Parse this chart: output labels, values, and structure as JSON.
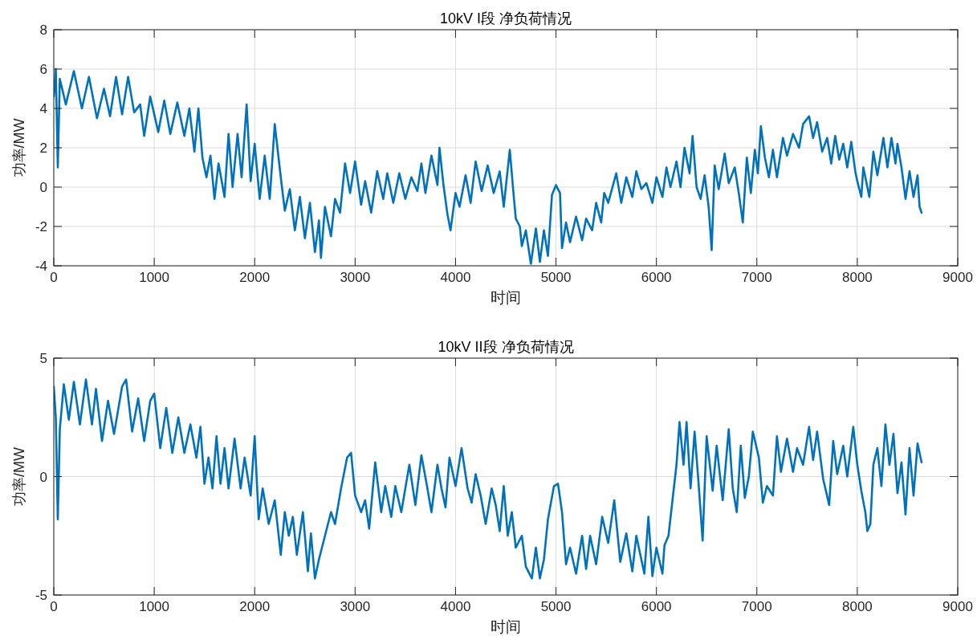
{
  "chart_data": [
    {
      "type": "line",
      "title": "10kV I段 净负荷情况",
      "xlabel": "时间",
      "ylabel": "功率/MW",
      "xlim": [
        0,
        9000
      ],
      "ylim": [
        -4,
        8
      ],
      "xticks": [
        0,
        1000,
        2000,
        3000,
        4000,
        5000,
        6000,
        7000,
        8000,
        9000
      ],
      "yticks": [
        -4,
        -2,
        0,
        2,
        4,
        6,
        8
      ],
      "grid": true,
      "x": [
        0,
        20,
        40,
        60,
        120,
        200,
        280,
        350,
        430,
        500,
        560,
        620,
        680,
        740,
        800,
        860,
        900,
        960,
        1040,
        1100,
        1160,
        1230,
        1300,
        1350,
        1400,
        1440,
        1480,
        1520,
        1560,
        1600,
        1640,
        1700,
        1740,
        1780,
        1830,
        1870,
        1920,
        1960,
        2000,
        2050,
        2100,
        2150,
        2200,
        2260,
        2300,
        2350,
        2400,
        2450,
        2500,
        2550,
        2600,
        2640,
        2660,
        2700,
        2760,
        2800,
        2850,
        2900,
        2950,
        3000,
        3060,
        3100,
        3160,
        3220,
        3280,
        3320,
        3380,
        3440,
        3500,
        3560,
        3620,
        3660,
        3700,
        3760,
        3820,
        3840,
        3880,
        3920,
        3950,
        4000,
        4040,
        4100,
        4150,
        4200,
        4260,
        4320,
        4380,
        4440,
        4480,
        4540,
        4580,
        4600,
        4640,
        4660,
        4700,
        4750,
        4800,
        4840,
        4880,
        4920,
        4960,
        5000,
        5040,
        5060,
        5100,
        5140,
        5200,
        5260,
        5300,
        5360,
        5400,
        5450,
        5480,
        5520,
        5600,
        5650,
        5700,
        5760,
        5800,
        5850,
        5900,
        5960,
        6000,
        6060,
        6100,
        6140,
        6200,
        6240,
        6280,
        6330,
        6360,
        6400,
        6440,
        6480,
        6520,
        6550,
        6580,
        6620,
        6680,
        6720,
        6780,
        6820,
        6860,
        6900,
        6940,
        6980,
        7010,
        7040,
        7080,
        7120,
        7160,
        7200,
        7260,
        7300,
        7360,
        7420,
        7460,
        7520,
        7560,
        7600,
        7650,
        7700,
        7740,
        7780,
        7820,
        7860,
        7900,
        7940,
        7980,
        8000,
        8040,
        8060,
        8120,
        8160,
        8200,
        8260,
        8300,
        8340,
        8380,
        8400,
        8440,
        8480,
        8520,
        8560,
        8600,
        8620,
        8640
      ],
      "series": [
        {
          "color": "#0072bd",
          "values": [
            4.6,
            6.0,
            1.0,
            5.5,
            4.2,
            5.9,
            4.0,
            5.6,
            3.5,
            5.0,
            3.6,
            5.6,
            3.7,
            5.6,
            3.8,
            4.2,
            2.6,
            4.6,
            2.8,
            4.4,
            2.7,
            4.3,
            2.6,
            4.0,
            1.8,
            4.0,
            1.5,
            0.5,
            1.6,
            -0.6,
            1.2,
            -0.5,
            2.7,
            0.0,
            2.7,
            0.5,
            4.2,
            0.3,
            2.2,
            -0.6,
            1.6,
            -0.6,
            3.2,
            0.5,
            -1.2,
            -0.1,
            -2.2,
            -0.5,
            -2.6,
            -0.8,
            -3.3,
            -1.7,
            -3.6,
            -1.0,
            -2.5,
            -0.6,
            -1.3,
            1.2,
            -0.3,
            1.3,
            -0.9,
            0.3,
            -1.3,
            0.8,
            -0.6,
            0.7,
            -0.8,
            0.7,
            -0.6,
            0.5,
            -0.2,
            1.2,
            -0.3,
            1.6,
            0.1,
            2.0,
            0.1,
            -1.4,
            -2.2,
            -0.3,
            -1.0,
            0.6,
            -0.8,
            1.3,
            -0.2,
            1.1,
            -0.3,
            0.8,
            -1.0,
            1.9,
            -0.5,
            -1.6,
            -2.0,
            -3.0,
            -2.2,
            -3.9,
            -2.1,
            -3.8,
            -2.2,
            -3.5,
            -0.4,
            0.1,
            -0.3,
            -3.1,
            -1.8,
            -2.8,
            -1.5,
            -2.7,
            -1.6,
            -2.2,
            -0.8,
            -1.8,
            -0.3,
            -0.8,
            0.7,
            -0.8,
            0.5,
            -0.5,
            0.8,
            -0.1,
            0.2,
            -0.8,
            0.5,
            -0.5,
            1.0,
            0.0,
            1.3,
            0.0,
            2.0,
            0.7,
            2.6,
            0.0,
            -0.6,
            0.6,
            -1.0,
            -3.2,
            1.1,
            -0.1,
            1.7,
            0.2,
            1.0,
            -0.3,
            -1.8,
            1.5,
            -0.3,
            1.9,
            0.7,
            3.1,
            1.5,
            0.5,
            1.9,
            0.5,
            2.5,
            1.6,
            2.7,
            2.0,
            3.2,
            3.6,
            2.5,
            3.3,
            1.8,
            2.5,
            1.2,
            2.6,
            1.4,
            2.2,
            1.0,
            2.3,
            0.8,
            0.3,
            -0.5,
            1.0,
            -0.5,
            1.8,
            0.6,
            2.5,
            1.0,
            2.5,
            1.2,
            2.2,
            1.0,
            -0.6,
            0.8,
            -0.5,
            0.6,
            -1.0,
            -1.3
          ]
        }
      ]
    },
    {
      "type": "line",
      "title": "10kV II段 净负荷情况",
      "xlabel": "时间",
      "ylabel": "功率/MW",
      "xlim": [
        0,
        9000
      ],
      "ylim": [
        -5,
        5
      ],
      "xticks": [
        0,
        1000,
        2000,
        3000,
        4000,
        5000,
        6000,
        7000,
        8000,
        9000
      ],
      "yticks": [
        -5,
        0,
        5
      ],
      "grid": true,
      "x": [
        0,
        20,
        40,
        60,
        100,
        150,
        200,
        260,
        320,
        380,
        420,
        480,
        540,
        600,
        680,
        720,
        780,
        840,
        900,
        960,
        1000,
        1060,
        1120,
        1180,
        1240,
        1300,
        1360,
        1420,
        1460,
        1500,
        1540,
        1580,
        1620,
        1660,
        1700,
        1740,
        1800,
        1860,
        1900,
        1960,
        2000,
        2040,
        2080,
        2140,
        2200,
        2260,
        2300,
        2340,
        2380,
        2420,
        2480,
        2530,
        2560,
        2600,
        2640,
        2700,
        2760,
        2800,
        2860,
        2920,
        2960,
        3000,
        3060,
        3100,
        3140,
        3200,
        3260,
        3300,
        3360,
        3400,
        3460,
        3540,
        3600,
        3660,
        3720,
        3760,
        3820,
        3860,
        3900,
        3940,
        4000,
        4060,
        4120,
        4160,
        4200,
        4250,
        4300,
        4360,
        4400,
        4440,
        4480,
        4520,
        4560,
        4600,
        4660,
        4700,
        4760,
        4800,
        4840,
        4880,
        4920,
        4980,
        5020,
        5060,
        5100,
        5140,
        5200,
        5260,
        5300,
        5340,
        5400,
        5460,
        5520,
        5580,
        5640,
        5700,
        5760,
        5800,
        5880,
        5920,
        5960,
        6000,
        6060,
        6080,
        6120,
        6160,
        6200,
        6230,
        6270,
        6300,
        6340,
        6380,
        6420,
        6460,
        6500,
        6560,
        6600,
        6660,
        6720,
        6760,
        6800,
        6840,
        6880,
        6920,
        6960,
        7020,
        7060,
        7100,
        7160,
        7200,
        7240,
        7300,
        7360,
        7400,
        7460,
        7520,
        7560,
        7600,
        7660,
        7720,
        7760,
        7800,
        7860,
        7900,
        7960,
        8000,
        8040,
        8080,
        8100,
        8130,
        8160,
        8200,
        8240,
        8280,
        8320,
        8360,
        8400,
        8440,
        8480,
        8520,
        8560,
        8600,
        8640
      ],
      "series": [
        {
          "color": "#0072bd",
          "values": [
            3.8,
            2.5,
            -1.8,
            2.0,
            3.9,
            2.4,
            4.0,
            2.2,
            4.1,
            2.2,
            3.7,
            1.5,
            3.2,
            1.8,
            3.8,
            4.1,
            1.9,
            3.3,
            1.5,
            3.2,
            3.5,
            1.2,
            2.9,
            1.0,
            2.5,
            1.0,
            2.2,
            0.8,
            2.1,
            -0.3,
            0.8,
            -0.5,
            1.7,
            -0.3,
            1.2,
            -0.5,
            1.6,
            -0.5,
            0.8,
            -0.8,
            1.7,
            -1.8,
            -0.5,
            -2.0,
            -1.0,
            -3.3,
            -1.5,
            -2.5,
            -1.7,
            -3.3,
            -1.5,
            -4.0,
            -2.4,
            -4.3,
            -3.5,
            -2.5,
            -1.5,
            -2.0,
            -0.5,
            0.8,
            1.0,
            -0.8,
            -1.5,
            -1.0,
            -2.2,
            0.6,
            -1.5,
            -0.4,
            -1.7,
            -0.4,
            -1.5,
            0.5,
            -1.2,
            0.9,
            -0.5,
            -1.5,
            0.5,
            -0.5,
            -1.3,
            0.8,
            -0.4,
            1.2,
            -0.5,
            -1.1,
            0.1,
            -0.8,
            -2.0,
            -0.5,
            -1.2,
            -2.3,
            -0.4,
            -2.5,
            -1.5,
            -3.0,
            -2.5,
            -3.8,
            -4.3,
            -3.0,
            -4.3,
            -3.5,
            -1.8,
            -0.4,
            -0.3,
            -1.5,
            -3.7,
            -3.0,
            -4.1,
            -2.5,
            -3.9,
            -2.5,
            -3.7,
            -1.7,
            -2.8,
            -1.0,
            -3.6,
            -2.4,
            -4.0,
            -2.5,
            -4.1,
            -1.7,
            -4.2,
            -3.0,
            -4.1,
            -2.9,
            -2.5,
            -1.0,
            0.5,
            2.3,
            0.5,
            2.3,
            -0.5,
            1.9,
            -0.3,
            -2.7,
            1.7,
            -0.6,
            1.3,
            -1.0,
            2.0,
            -0.5,
            -1.5,
            1.3,
            -0.9,
            0.0,
            1.9,
            0.8,
            -1.1,
            -0.4,
            -0.8,
            1.7,
            0.2,
            1.6,
            0.2,
            1.2,
            0.5,
            2.1,
            0.7,
            1.9,
            -0.1,
            -1.2,
            1.5,
            0.1,
            1.3,
            0.0,
            2.1,
            0.5,
            -0.6,
            -1.5,
            -2.3,
            -2.0,
            0.5,
            1.2,
            -0.4,
            2.2,
            0.5,
            1.8,
            -0.7,
            0.6,
            -1.6,
            1.2,
            -0.8,
            1.4,
            0.6
          ]
        }
      ]
    }
  ]
}
